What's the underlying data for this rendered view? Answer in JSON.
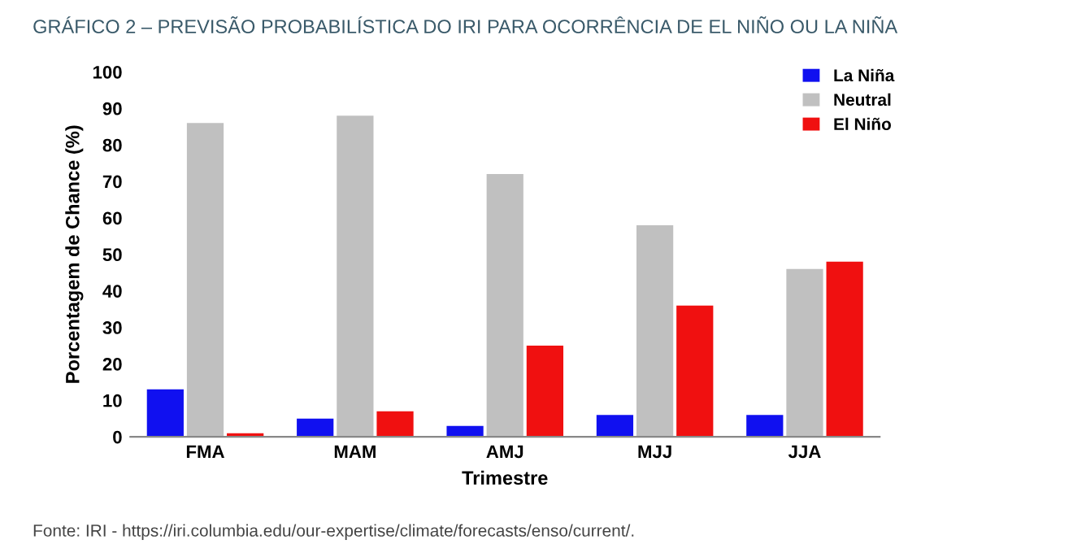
{
  "chart_data": {
    "type": "bar",
    "title": "GRÁFICO 2 – PREVISÃO PROBABILÍSTICA DO IRI PARA OCORRÊNCIA DE EL NIÑO OU LA NIÑA",
    "xlabel": "Trimestre",
    "ylabel": "Porcentagem de Chance (%)",
    "categories": [
      "FMA",
      "MAM",
      "AMJ",
      "MJJ",
      "JJA"
    ],
    "series": [
      {
        "name": "La Niña",
        "color": "#1010f0",
        "values": [
          13,
          5,
          3,
          6,
          6
        ]
      },
      {
        "name": "Neutral",
        "color": "#c0c0c0",
        "values": [
          86,
          88,
          72,
          58,
          46
        ]
      },
      {
        "name": "El Niño",
        "color": "#f01010",
        "values": [
          1,
          7,
          25,
          36,
          48
        ]
      }
    ],
    "ylim": [
      0,
      100
    ],
    "yticks": [
      0,
      10,
      20,
      30,
      40,
      50,
      60,
      70,
      80,
      90,
      100
    ],
    "grid": false,
    "legend": "top right",
    "annotations": [
      "Fonte: IRI - https://iri.columbia.edu/our-expertise/climate/forecasts/enso/current/."
    ]
  }
}
